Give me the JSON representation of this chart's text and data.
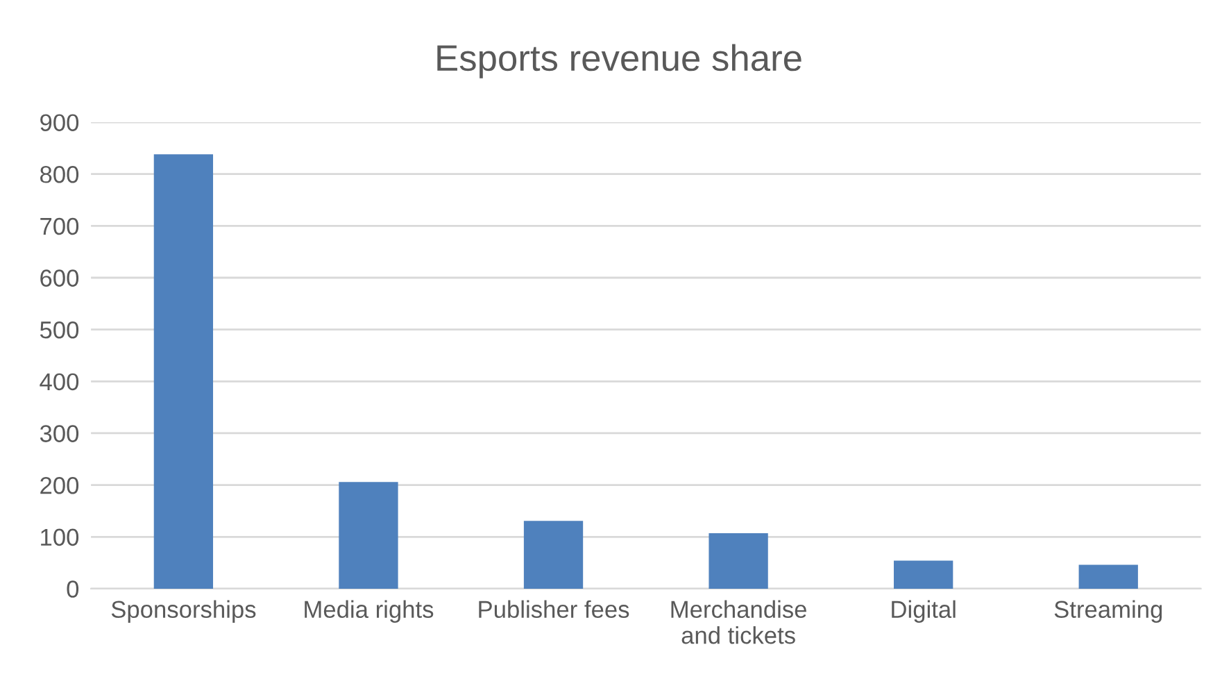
{
  "chart_data": {
    "type": "bar",
    "title": "Esports revenue share",
    "categories": [
      "Sponsorships",
      "Media rights",
      "Publisher fees",
      "Merchandise\nand tickets",
      "Digital",
      "Streaming"
    ],
    "values": [
      838,
      206,
      131,
      107,
      54,
      46
    ],
    "color": "#4f81bd",
    "ylim": [
      0,
      900
    ],
    "yticks": [
      0,
      100,
      200,
      300,
      400,
      500,
      600,
      700,
      800,
      900
    ],
    "grid": "y"
  }
}
